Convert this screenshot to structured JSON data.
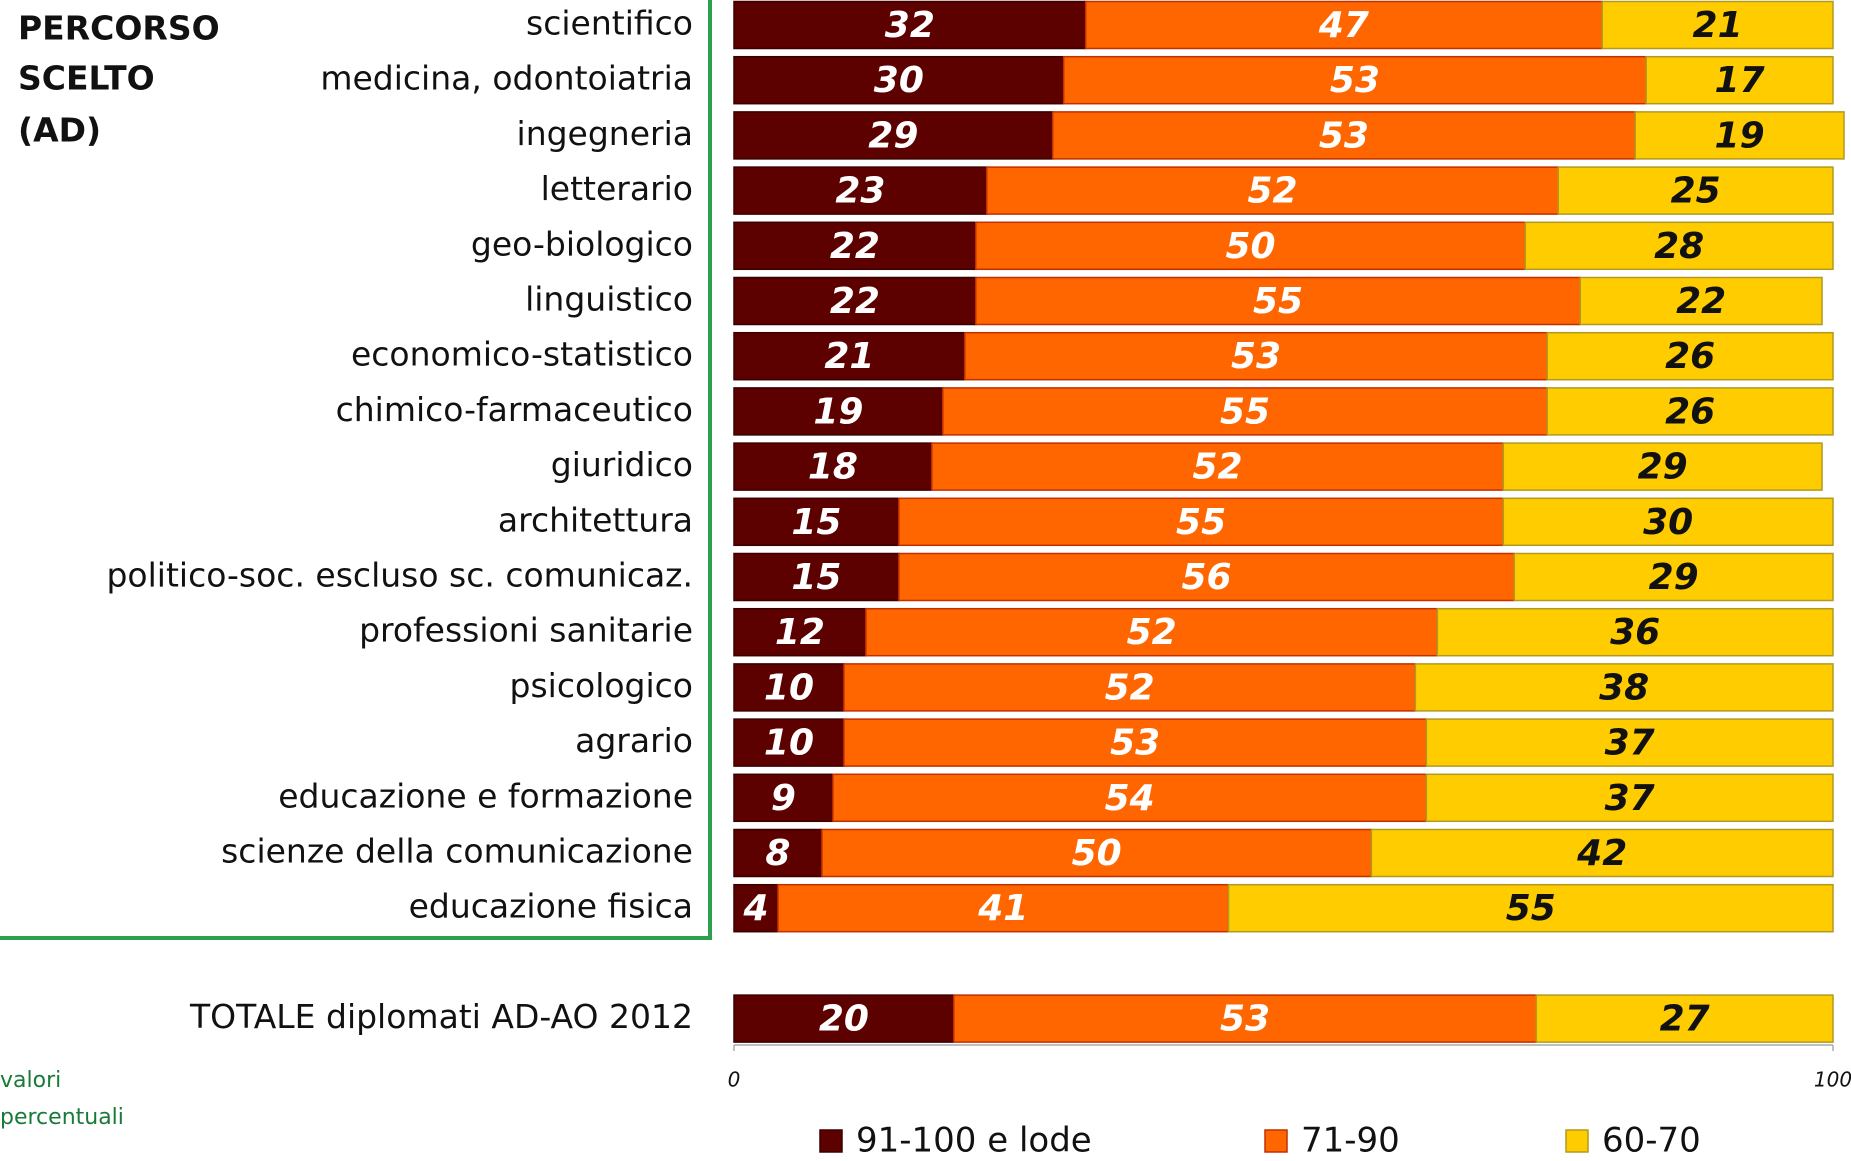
{
  "chart_data": {
    "type": "stacked_barh",
    "title": [
      "PERCORSO",
      "SCELTO",
      "(AD)"
    ],
    "note": [
      "valori",
      "percentuali"
    ],
    "categories": [
      "scientifico",
      "medicina, odontoiatria",
      "ingegneria",
      "letterario",
      "geo-biologico",
      "linguistico",
      "economico-statistico",
      "chimico-farmaceutico",
      "giuridico",
      "architettura",
      "politico-soc. escluso sc. comunicaz.",
      "professioni sanitarie",
      "psicologico",
      "agrario",
      "educazione e formazione",
      "scienze della comunicazione",
      "educazione fisica",
      null,
      "TOTALE diplomati AD-AO 2012"
    ],
    "series": [
      {
        "name": "91-100 e lode",
        "color": "#5c0000",
        "values": [
          32,
          30,
          29,
          23,
          22,
          22,
          21,
          19,
          18,
          15,
          15,
          12,
          10,
          10,
          9,
          8,
          4,
          null,
          20
        ]
      },
      {
        "name": "71-90",
        "color": "#ff6600",
        "values": [
          47,
          53,
          53,
          52,
          50,
          55,
          53,
          55,
          52,
          55,
          56,
          52,
          52,
          53,
          54,
          50,
          41,
          null,
          53
        ]
      },
      {
        "name": "60-70",
        "color": "#ffcc00",
        "values": [
          21,
          17,
          19,
          25,
          28,
          22,
          26,
          26,
          29,
          30,
          29,
          36,
          38,
          37,
          37,
          42,
          55,
          null,
          27
        ]
      }
    ],
    "xlim": [
      0,
      100
    ],
    "xticks": [
      0,
      100
    ]
  }
}
